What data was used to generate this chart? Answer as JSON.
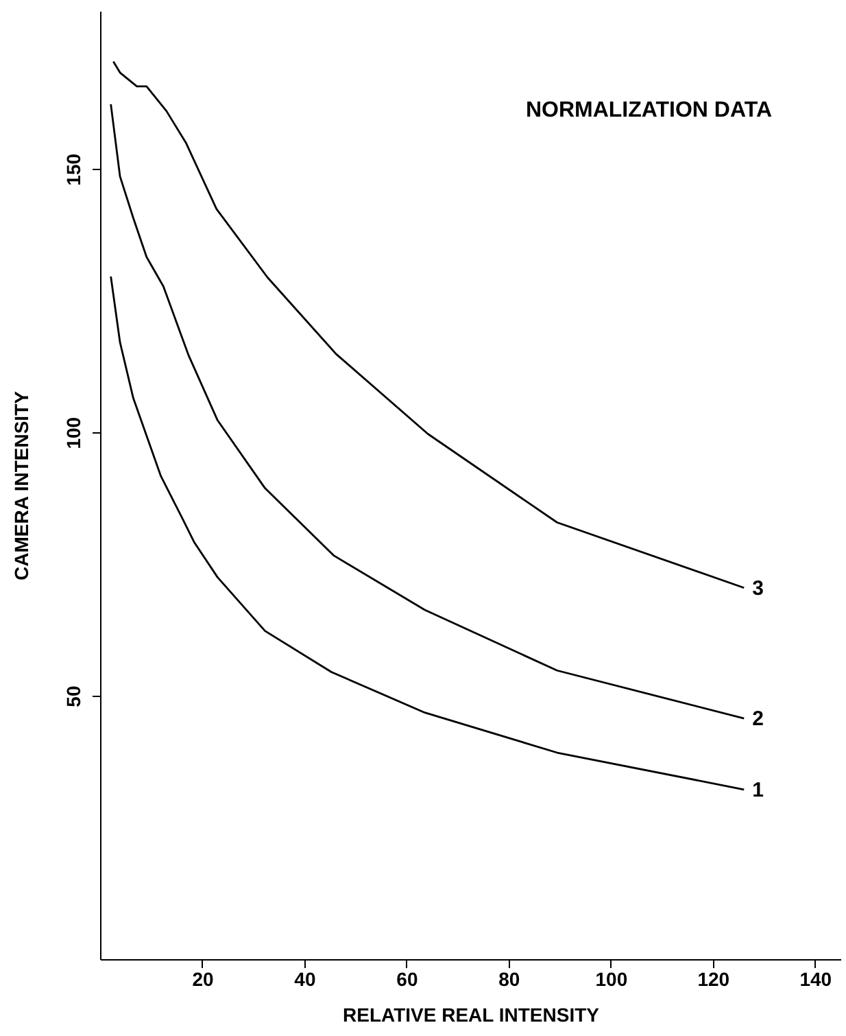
{
  "chart_data": {
    "type": "line",
    "title": "NORMALIZATION DATA",
    "xlabel": "RELATIVE  REAL  INTENSITY",
    "ylabel": "CAMERA  INTENSITY",
    "xlim": [
      0,
      145
    ],
    "xticks": [
      20,
      40,
      60,
      80,
      100,
      120,
      140
    ],
    "ylim": [
      0,
      180
    ],
    "yticks": [
      50,
      100,
      150
    ],
    "grid": false,
    "legend": false,
    "marker": "none",
    "line_style": "solid",
    "series": [
      {
        "name": "1",
        "color": "#000000",
        "x": [
          2.1,
          3.9,
          6.5,
          11.9,
          16.2,
          18.4,
          23,
          32.3,
          45.3,
          63.6,
          89.5,
          126.1
        ],
        "values": [
          129.6,
          117.1,
          106.5,
          91.7,
          83.5,
          79.2,
          72.5,
          62.3,
          54.5,
          46.8,
          39.2,
          32.2
        ]
      },
      {
        "name": "2",
        "color": "#000000",
        "x": [
          2.1,
          3.9,
          6.5,
          9.1,
          12.4,
          17.3,
          23,
          32.3,
          45.8,
          63.6,
          89.5,
          126.1
        ],
        "values": [
          162.3,
          148.6,
          140.7,
          133.3,
          127.7,
          114.7,
          102.3,
          89.4,
          76.6,
          66.3,
          54.8,
          45.7
        ]
      },
      {
        "name": "3",
        "color": "#000000",
        "x": [
          2.6,
          3.9,
          7.2,
          9.1,
          13,
          16.8,
          22.8,
          32.8,
          46.2,
          64.2,
          89.5,
          126.1
        ],
        "values": [
          170.4,
          168.3,
          165.7,
          165.7,
          161,
          155,
          142.4,
          129.4,
          114.9,
          99.7,
          82.9,
          70.5
        ]
      }
    ]
  }
}
